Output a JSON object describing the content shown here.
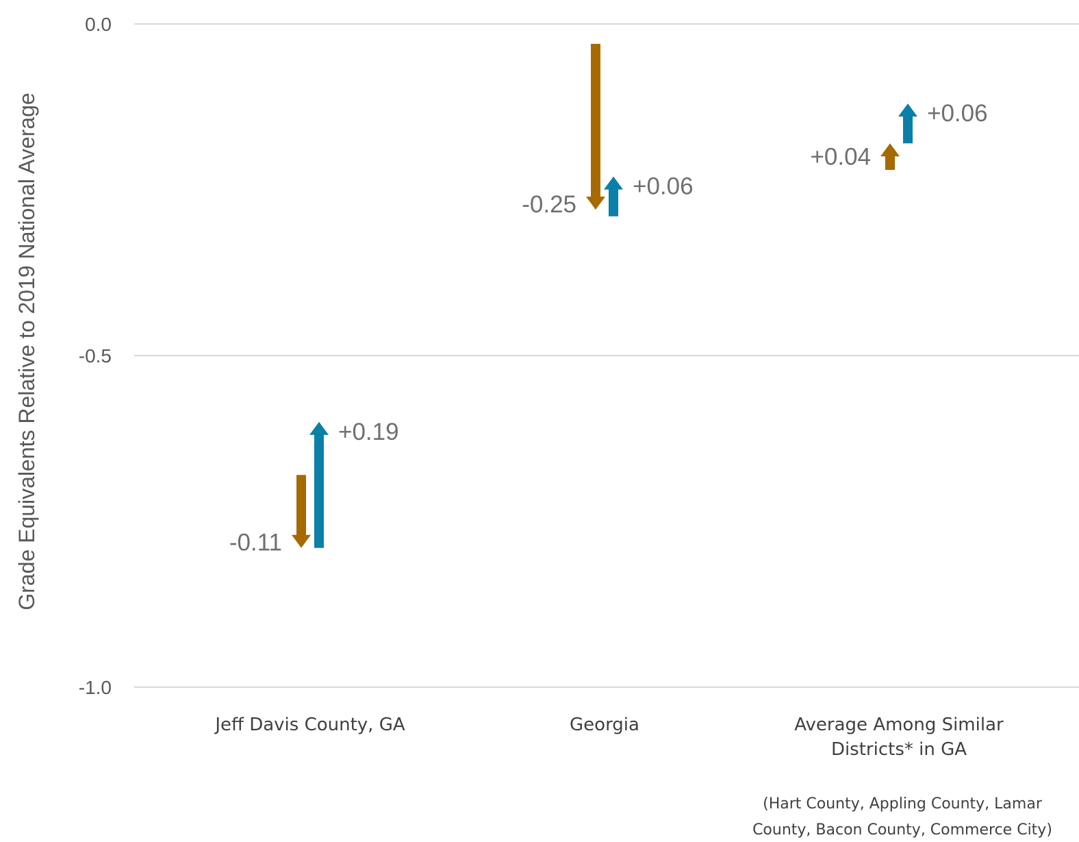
{
  "chart_data": {
    "type": "arrow",
    "ylabel": "Grade Equivalents Relative to 2019 National Average",
    "ylim": [
      -1.0,
      0.0
    ],
    "yticks": [
      "0.0",
      "-0.5",
      "-1.0"
    ],
    "ytick_values": [
      0.0,
      -0.5,
      -1.0
    ],
    "grid": true,
    "colors": {
      "first_change": "#a66a00",
      "second_change": "#0a80a8"
    },
    "categories": [
      {
        "name_lines": [
          "Jeff Davis County, GA"
        ],
        "changes": [
          {
            "from": -0.68,
            "to": -0.79,
            "label": "-0.11"
          },
          {
            "from": -0.79,
            "to": -0.6,
            "label": "+0.19"
          }
        ]
      },
      {
        "name_lines": [
          "Georgia"
        ],
        "changes": [
          {
            "from": -0.03,
            "to": -0.28,
            "label": "-0.25"
          },
          {
            "from": -0.29,
            "to": -0.23,
            "label": "+0.06"
          }
        ]
      },
      {
        "name_lines": [
          "Average Among Similar",
          "Districts* in GA"
        ],
        "changes": [
          {
            "from": -0.22,
            "to": -0.18,
            "label": "+0.04"
          },
          {
            "from": -0.18,
            "to": -0.12,
            "label": "+0.06"
          }
        ]
      }
    ],
    "footnote_lines": [
      "(Hart County, Appling County, Lamar",
      "County, Bacon County, Commerce City)"
    ]
  }
}
